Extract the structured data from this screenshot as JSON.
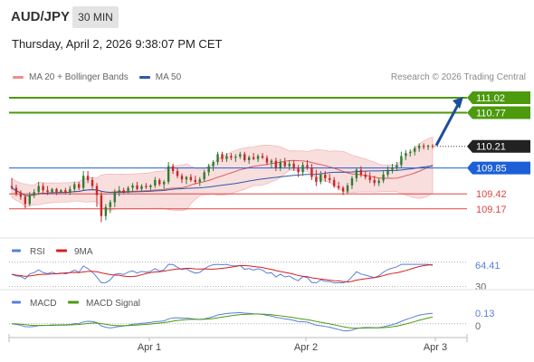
{
  "header": {
    "symbol": "AUD/JPY",
    "interval": "30 MIN",
    "datetime": "Thursday, April 2, 2026 9:38:07 PM CET"
  },
  "legend": {
    "ma20": "MA 20 + Bollinger Bands",
    "ma50": "MA 50",
    "copyright": "Research © 2026 Trading Central"
  },
  "colors": {
    "candle_up": "#2e7d32",
    "candle_down": "#c62828",
    "ma20": "#e05a5a",
    "band_fill": "#f7d3d3",
    "ma50": "#2d5aa8",
    "resistance": "#4c9a0e",
    "pivot": "#1c5fd6",
    "support": "#e04444",
    "current": "#222222",
    "rsi": "#5a7fd6",
    "rsi_ma": "#d42020",
    "macd": "#5a7fd6",
    "macd_signal": "#4c9a0e"
  },
  "chart_data": [
    {
      "type": "candlestick",
      "x_ticks": [
        "Apr 1",
        "Apr 2",
        "Apr 3"
      ],
      "ylim": [
        108.7,
        111.2
      ],
      "levels": [
        {
          "label": "111.02",
          "value": 111.02,
          "kind": "resistance"
        },
        {
          "label": "110.77",
          "value": 110.77,
          "kind": "resistance"
        },
        {
          "label": "110.21",
          "value": 110.21,
          "kind": "current"
        },
        {
          "label": "109.85",
          "value": 109.85,
          "kind": "pivot"
        },
        {
          "label": "109.42",
          "value": 109.42,
          "kind": "support"
        },
        {
          "label": "109.17",
          "value": 109.17,
          "kind": "support"
        }
      ],
      "forecast": {
        "from": 110.21,
        "to": 111.02,
        "direction": "up"
      },
      "candles": [
        [
          109.55,
          109.68,
          109.49,
          109.52
        ],
        [
          109.52,
          109.57,
          109.38,
          109.42
        ],
        [
          109.42,
          109.48,
          109.32,
          109.37
        ],
        [
          109.37,
          109.4,
          109.18,
          109.25
        ],
        [
          109.25,
          109.45,
          109.22,
          109.4
        ],
        [
          109.4,
          109.5,
          109.35,
          109.45
        ],
        [
          109.45,
          109.62,
          109.4,
          109.55
        ],
        [
          109.55,
          109.6,
          109.44,
          109.48
        ],
        [
          109.48,
          109.55,
          109.4,
          109.45
        ],
        [
          109.45,
          109.52,
          109.42,
          109.5
        ],
        [
          109.5,
          109.52,
          109.4,
          109.45
        ],
        [
          109.45,
          109.5,
          109.43,
          109.48
        ],
        [
          109.48,
          109.52,
          109.42,
          109.45
        ],
        [
          109.45,
          109.55,
          109.4,
          109.5
        ],
        [
          109.5,
          109.62,
          109.45,
          109.58
        ],
        [
          109.58,
          109.62,
          109.48,
          109.52
        ],
        [
          109.52,
          109.8,
          109.48,
          109.72
        ],
        [
          109.72,
          109.8,
          109.6,
          109.65
        ],
        [
          109.65,
          109.7,
          109.5,
          109.55
        ],
        [
          109.55,
          109.6,
          109.2,
          109.4
        ],
        [
          109.4,
          109.45,
          108.95,
          109.05
        ],
        [
          109.05,
          109.25,
          108.98,
          109.2
        ],
        [
          109.2,
          109.32,
          109.1,
          109.28
        ],
        [
          109.28,
          109.5,
          109.2,
          109.45
        ],
        [
          109.45,
          109.55,
          109.38,
          109.48
        ],
        [
          109.48,
          109.52,
          109.42,
          109.45
        ],
        [
          109.45,
          109.55,
          109.43,
          109.52
        ],
        [
          109.52,
          109.6,
          109.45,
          109.56
        ],
        [
          109.56,
          109.62,
          109.48,
          109.5
        ],
        [
          109.5,
          109.58,
          109.46,
          109.55
        ],
        [
          109.55,
          109.6,
          109.5,
          109.53
        ],
        [
          109.53,
          109.58,
          109.48,
          109.56
        ],
        [
          109.56,
          109.7,
          109.52,
          109.65
        ],
        [
          109.65,
          109.68,
          109.55,
          109.58
        ],
        [
          109.58,
          109.65,
          109.5,
          109.62
        ],
        [
          109.62,
          109.95,
          109.58,
          109.88
        ],
        [
          109.88,
          109.92,
          109.75,
          109.8
        ],
        [
          109.8,
          109.85,
          109.68,
          109.72
        ],
        [
          109.72,
          109.76,
          109.6,
          109.66
        ],
        [
          109.66,
          109.72,
          109.58,
          109.7
        ],
        [
          109.7,
          109.75,
          109.62,
          109.65
        ],
        [
          109.65,
          109.72,
          109.58,
          109.62
        ],
        [
          109.62,
          109.7,
          109.55,
          109.66
        ],
        [
          109.66,
          109.82,
          109.62,
          109.78
        ],
        [
          109.78,
          109.92,
          109.72,
          109.88
        ],
        [
          109.88,
          109.98,
          109.8,
          109.95
        ],
        [
          109.95,
          110.12,
          109.9,
          110.08
        ],
        [
          110.08,
          110.12,
          109.95,
          110.0
        ],
        [
          110.0,
          110.1,
          109.95,
          110.05
        ],
        [
          110.05,
          110.1,
          109.98,
          110.02
        ],
        [
          110.02,
          110.08,
          109.95,
          110.04
        ],
        [
          110.04,
          110.12,
          110.0,
          110.08
        ],
        [
          110.08,
          110.12,
          109.95,
          109.98
        ],
        [
          109.98,
          110.06,
          109.92,
          110.03
        ],
        [
          110.03,
          110.1,
          109.98,
          110.0
        ],
        [
          110.0,
          110.08,
          109.95,
          110.05
        ],
        [
          110.05,
          110.1,
          110.0,
          110.02
        ],
        [
          110.02,
          110.06,
          109.9,
          109.94
        ],
        [
          109.94,
          110.0,
          109.85,
          109.97
        ],
        [
          109.97,
          110.02,
          109.8,
          109.85
        ],
        [
          109.85,
          110.0,
          109.8,
          109.95
        ],
        [
          109.95,
          110.02,
          109.85,
          109.88
        ],
        [
          109.88,
          109.98,
          109.82,
          109.92
        ],
        [
          109.92,
          109.98,
          109.8,
          109.84
        ],
        [
          109.84,
          109.9,
          109.7,
          109.78
        ],
        [
          109.78,
          109.95,
          109.72,
          109.9
        ],
        [
          109.9,
          109.98,
          109.82,
          109.86
        ],
        [
          109.86,
          109.92,
          109.65,
          109.7
        ],
        [
          109.7,
          109.82,
          109.55,
          109.62
        ],
        [
          109.62,
          109.8,
          109.58,
          109.74
        ],
        [
          109.74,
          109.8,
          109.62,
          109.68
        ],
        [
          109.68,
          109.75,
          109.6,
          109.65
        ],
        [
          109.65,
          109.7,
          109.52,
          109.55
        ],
        [
          109.55,
          109.62,
          109.48,
          109.52
        ],
        [
          109.52,
          109.55,
          109.4,
          109.46
        ],
        [
          109.46,
          109.6,
          109.42,
          109.56
        ],
        [
          109.56,
          109.72,
          109.5,
          109.68
        ],
        [
          109.68,
          109.85,
          109.62,
          109.82
        ],
        [
          109.82,
          109.88,
          109.7,
          109.74
        ],
        [
          109.74,
          109.8,
          109.66,
          109.7
        ],
        [
          109.7,
          109.78,
          109.6,
          109.65
        ],
        [
          109.65,
          109.72,
          109.55,
          109.6
        ],
        [
          109.6,
          109.68,
          109.55,
          109.64
        ],
        [
          109.64,
          109.8,
          109.6,
          109.74
        ],
        [
          109.74,
          109.88,
          109.7,
          109.82
        ],
        [
          109.82,
          109.92,
          109.76,
          109.86
        ],
        [
          109.86,
          109.95,
          109.8,
          109.9
        ],
        [
          109.9,
          110.12,
          109.86,
          110.05
        ],
        [
          110.05,
          110.15,
          109.98,
          110.1
        ],
        [
          110.1,
          110.16,
          110.04,
          110.12
        ],
        [
          110.12,
          110.22,
          110.06,
          110.18
        ],
        [
          110.18,
          110.26,
          110.12,
          110.22
        ],
        [
          110.22,
          110.26,
          110.16,
          110.2
        ],
        [
          110.2,
          110.24,
          110.15,
          110.22
        ],
        [
          110.22,
          110.25,
          110.17,
          110.21
        ]
      ]
    },
    {
      "type": "line",
      "title": "RSI",
      "series": [
        {
          "name": "RSI"
        },
        {
          "name": "9MA"
        }
      ],
      "y_ticks": [
        "64.41",
        "30"
      ],
      "levels": [
        70,
        30
      ],
      "current": 64.41,
      "ylim": [
        25,
        75
      ]
    },
    {
      "type": "line",
      "title": "MACD",
      "series": [
        {
          "name": "MACD"
        },
        {
          "name": "MACD Signal"
        }
      ],
      "y_ticks": [
        "0.13",
        "0"
      ],
      "current": 0.13,
      "ylim": [
        -0.16,
        0.2
      ]
    }
  ]
}
